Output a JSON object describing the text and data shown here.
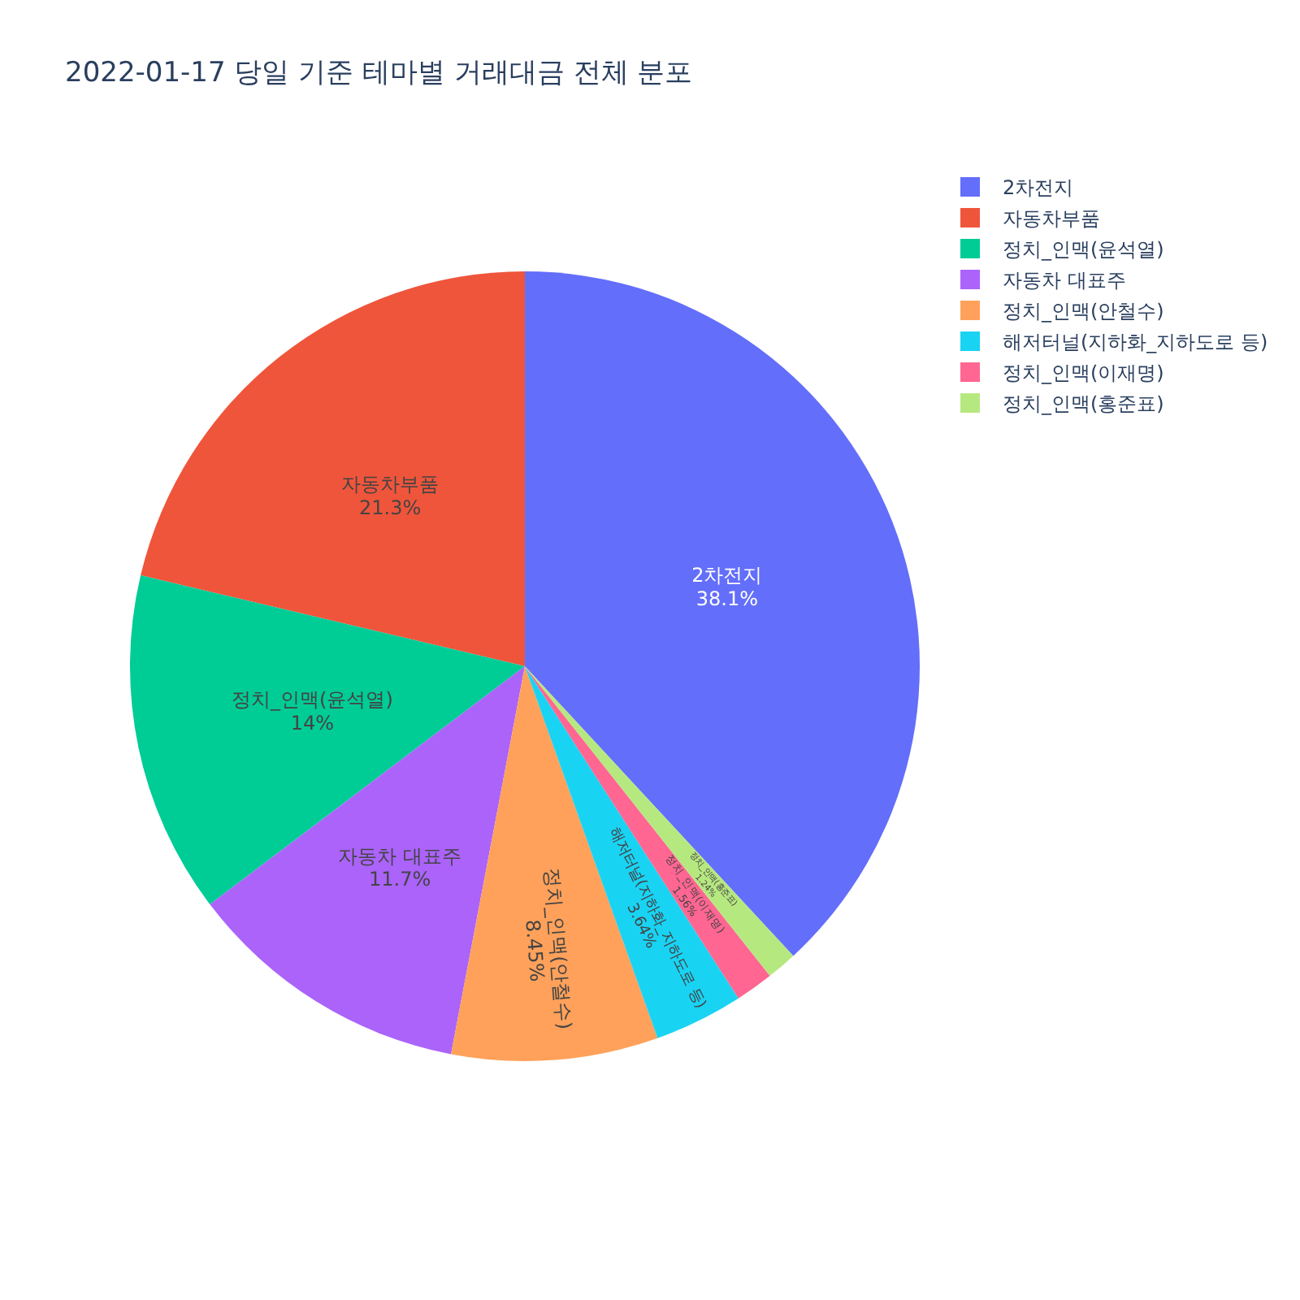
{
  "chart_data": {
    "type": "pie",
    "title": "2022-01-17 당일 기준 테마별 거래대금 전체 분포",
    "categories": [
      "2차전지",
      "자동차부품",
      "정치_인맥(윤석열)",
      "자동차 대표주",
      "정치_인맥(안철수)",
      "해저터널(지하화_지하도로 등)",
      "정치_인맥(이재명)",
      "정치_인맥(홍준표)"
    ],
    "values": [
      38.1,
      21.3,
      14,
      11.7,
      8.45,
      3.64,
      1.56,
      1.24
    ],
    "value_labels": [
      "38.1%",
      "21.3%",
      "14%",
      "11.7%",
      "8.45%",
      "3.64%",
      "1.56%",
      "1.24%"
    ],
    "colors": [
      "#636efa",
      "#ef553b",
      "#00cc96",
      "#ab63fa",
      "#ffa15a",
      "#19d3f3",
      "#ff6692",
      "#b6e880"
    ],
    "legend": "top right"
  }
}
